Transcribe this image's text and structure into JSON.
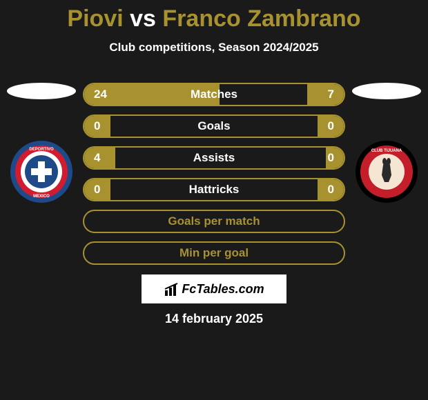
{
  "title": {
    "player1": "Piovi",
    "vs": "vs",
    "player2": "Franco Zambrano"
  },
  "subtitle": "Club competitions, Season 2024/2025",
  "stats": [
    {
      "label": "Matches",
      "left_val": "24",
      "right_val": "7",
      "left_pct": 52,
      "right_pct": 14,
      "has_data": true
    },
    {
      "label": "Goals",
      "left_val": "0",
      "right_val": "0",
      "left_pct": 10,
      "right_pct": 10,
      "has_data": true
    },
    {
      "label": "Assists",
      "left_val": "4",
      "right_val": "0",
      "left_pct": 12,
      "right_pct": 7,
      "has_data": true
    },
    {
      "label": "Hattricks",
      "left_val": "0",
      "right_val": "0",
      "left_pct": 10,
      "right_pct": 10,
      "has_data": true
    },
    {
      "label": "Goals per match",
      "has_data": false
    },
    {
      "label": "Min per goal",
      "has_data": false
    }
  ],
  "clubs": {
    "left_name": "Cruz Azul",
    "right_name": "Club Tijuana"
  },
  "footer": {
    "brand": "FcTables.com",
    "date": "14 february 2025"
  },
  "colors": {
    "accent": "#a89230",
    "bg": "#1a1a1a"
  }
}
